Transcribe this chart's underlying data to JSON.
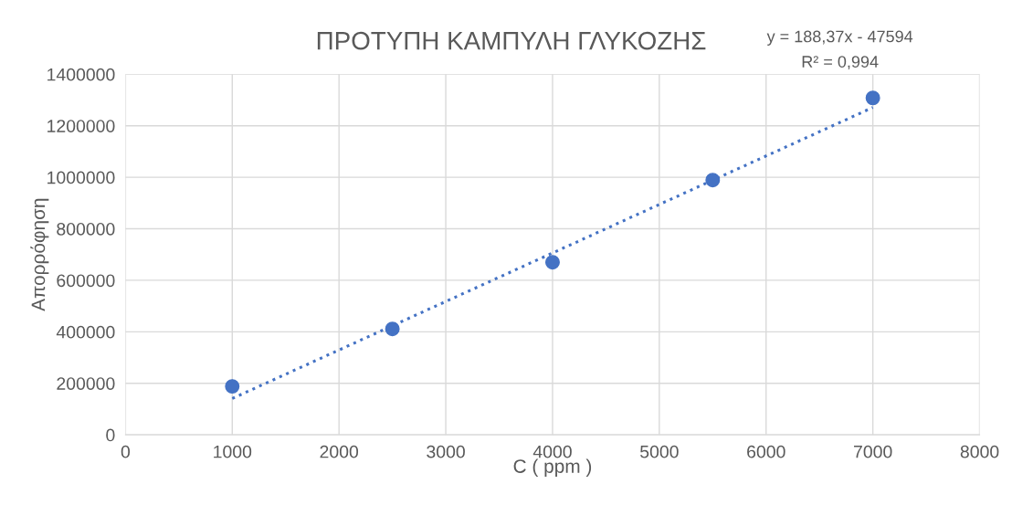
{
  "chart_data": {
    "type": "scatter",
    "title": "ΠΡΟΤΥΠΗ ΚΑΜΠΥΛΗ ΓΛΥΚΟΖΗΣ",
    "xlabel": "C ( ppm )",
    "ylabel": "Απορρόφηση",
    "series": [
      {
        "color": "#4472c4",
        "marker": "circle",
        "x": [
          1000,
          2500,
          4000,
          5500,
          7000
        ],
        "values": [
          188000,
          411000,
          670000,
          989000,
          1308000
        ]
      },
      {
        "type": "line",
        "color": "#4472c4",
        "line_style": "dotted",
        "marker": "none",
        "x": [
          1000,
          7000
        ],
        "values": [
          141000,
          1271000
        ]
      }
    ],
    "annotations": [
      "y = 188,37x - 47594",
      "R² = 0,994"
    ],
    "xlim": [
      0,
      8000
    ],
    "xticks": [
      0,
      1000,
      2000,
      3000,
      4000,
      5000,
      6000,
      7000,
      8000
    ],
    "ylim": [
      0,
      1400000
    ],
    "yticks": [
      0,
      200000,
      400000,
      600000,
      800000,
      1000000,
      1200000,
      1400000
    ],
    "grid": true,
    "legend": false
  }
}
